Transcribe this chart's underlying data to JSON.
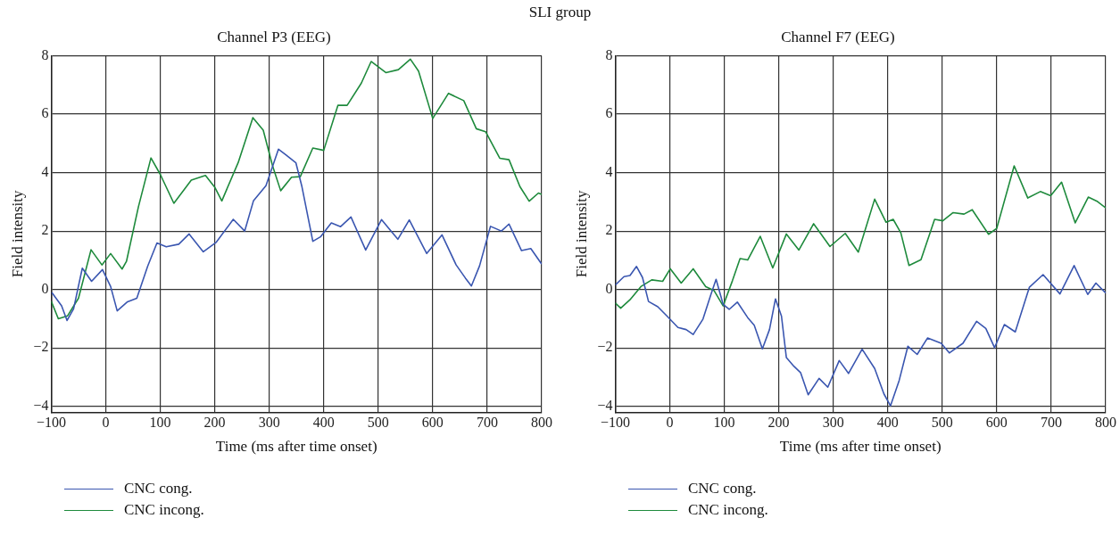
{
  "chart_data": [
    {
      "type": "line",
      "title": "Channel P3 (EEG)",
      "annotations": [
        "SLI group"
      ],
      "xlabel": "Time (ms after time onset)",
      "ylabel": "Field intensity",
      "xlim": [
        -100,
        800
      ],
      "ylim": [
        -4.2,
        8
      ],
      "xticks": [
        -100,
        0,
        100,
        200,
        300,
        400,
        500,
        600,
        700,
        800
      ],
      "yticks": [
        -4,
        -2,
        0,
        2,
        4,
        6,
        8
      ],
      "grid": true,
      "legend": "bottom left",
      "marker": "none",
      "line_style": "solid",
      "series": [
        {
          "name": "CNC cong.",
          "color": "#3a56b0",
          "x": [
            -99,
            -81,
            -71,
            -59,
            -43,
            -26,
            -6,
            9,
            21,
            40,
            57,
            77,
            94,
            111,
            134,
            153,
            179,
            203,
            234,
            255,
            271,
            294,
            317,
            331,
            349,
            360,
            380,
            394,
            414,
            431,
            450,
            477,
            506,
            536,
            557,
            589,
            617,
            643,
            660,
            671,
            686,
            706,
            726,
            740,
            763,
            780,
            800
          ],
          "values": [
            -0.1,
            -0.56,
            -1.06,
            -0.66,
            0.73,
            0.28,
            0.68,
            0.1,
            -0.73,
            -0.42,
            -0.3,
            0.8,
            1.59,
            1.46,
            1.55,
            1.9,
            1.29,
            1.62,
            2.4,
            2.0,
            3.03,
            3.55,
            4.8,
            4.6,
            4.33,
            3.52,
            1.65,
            1.8,
            2.28,
            2.15,
            2.48,
            1.35,
            2.39,
            1.72,
            2.38,
            1.23,
            1.87,
            0.84,
            0.39,
            0.12,
            0.81,
            2.16,
            2.0,
            2.24,
            1.33,
            1.4,
            0.87
          ]
        },
        {
          "name": "CNC incong.",
          "color": "#1e8a3c",
          "x": [
            -100,
            -87,
            -70,
            -50,
            -27,
            -7,
            9,
            30,
            38,
            60,
            83,
            100,
            125,
            157,
            183,
            200,
            213,
            243,
            270,
            289,
            306,
            321,
            341,
            357,
            380,
            400,
            426,
            443,
            469,
            487,
            514,
            537,
            559,
            574,
            600,
            629,
            657,
            680,
            697,
            723,
            740,
            760,
            777,
            794,
            800
          ],
          "values": [
            -0.4,
            -1.0,
            -0.9,
            -0.3,
            1.36,
            0.84,
            1.23,
            0.7,
            0.96,
            2.83,
            4.5,
            3.94,
            2.95,
            3.74,
            3.9,
            3.5,
            3.03,
            4.34,
            5.88,
            5.45,
            4.24,
            3.38,
            3.84,
            3.86,
            4.84,
            4.76,
            6.3,
            6.3,
            7.06,
            7.8,
            7.42,
            7.52,
            7.88,
            7.47,
            5.85,
            6.71,
            6.46,
            5.5,
            5.4,
            4.49,
            4.44,
            3.52,
            3.02,
            3.3,
            3.25
          ]
        }
      ]
    },
    {
      "type": "line",
      "title": "Channel F7 (EEG)",
      "xlabel": "Time (ms after time onset)",
      "ylabel": "Field intensity",
      "xlim": [
        -100,
        800
      ],
      "ylim": [
        -4.2,
        8
      ],
      "xticks": [
        -100,
        0,
        100,
        200,
        300,
        400,
        500,
        600,
        700,
        800
      ],
      "yticks": [
        -4,
        -2,
        0,
        2,
        4,
        6,
        8
      ],
      "grid": true,
      "legend": "bottom left",
      "marker": "none",
      "line_style": "solid",
      "series": [
        {
          "name": "CNC cong.",
          "color": "#3a56b0",
          "x": [
            -100,
            -84,
            -73,
            -61,
            -50,
            -39,
            -22,
            -5,
            15,
            30,
            43,
            61,
            75,
            85,
            98,
            109,
            124,
            143,
            155,
            170,
            183,
            194,
            205,
            214,
            228,
            240,
            254,
            274,
            290,
            311,
            328,
            353,
            376,
            393,
            405,
            421,
            437,
            454,
            473,
            498,
            513,
            538,
            563,
            580,
            596,
            614,
            634,
            660,
            685,
            716,
            742,
            767,
            782,
            800
          ],
          "values": [
            0.15,
            0.44,
            0.48,
            0.79,
            0.41,
            -0.41,
            -0.59,
            -0.91,
            -1.3,
            -1.37,
            -1.54,
            -1.01,
            -0.2,
            0.35,
            -0.51,
            -0.68,
            -0.43,
            -0.96,
            -1.22,
            -2.03,
            -1.37,
            -0.32,
            -0.91,
            -2.33,
            -2.63,
            -2.84,
            -3.6,
            -3.04,
            -3.34,
            -2.43,
            -2.87,
            -2.04,
            -2.7,
            -3.57,
            -3.98,
            -3.11,
            -1.94,
            -2.22,
            -1.66,
            -1.84,
            -2.17,
            -1.84,
            -1.09,
            -1.33,
            -1.99,
            -1.2,
            -1.45,
            0.08,
            0.51,
            -0.15,
            0.82,
            -0.17,
            0.22,
            -0.12
          ]
        },
        {
          "name": "CNC incong.",
          "color": "#1e8a3c",
          "x": [
            -100,
            -90,
            -73,
            -53,
            -33,
            -13,
            1,
            21,
            43,
            66,
            81,
            98,
            115,
            129,
            143,
            166,
            189,
            214,
            237,
            264,
            294,
            322,
            346,
            376,
            397,
            410,
            424,
            439,
            461,
            486,
            501,
            520,
            540,
            555,
            585,
            600,
            632,
            657,
            680,
            699,
            719,
            744,
            768,
            785,
            800
          ],
          "values": [
            -0.46,
            -0.64,
            -0.35,
            0.1,
            0.33,
            0.28,
            0.71,
            0.22,
            0.71,
            0.1,
            -0.03,
            -0.56,
            0.3,
            1.06,
            1.01,
            1.82,
            0.74,
            1.9,
            1.35,
            2.25,
            1.47,
            1.92,
            1.28,
            3.09,
            2.3,
            2.4,
            1.94,
            0.82,
            1.02,
            2.4,
            2.35,
            2.63,
            2.58,
            2.73,
            1.89,
            2.09,
            4.23,
            3.13,
            3.35,
            3.21,
            3.67,
            2.28,
            3.16,
            3.01,
            2.79
          ]
        }
      ]
    }
  ]
}
